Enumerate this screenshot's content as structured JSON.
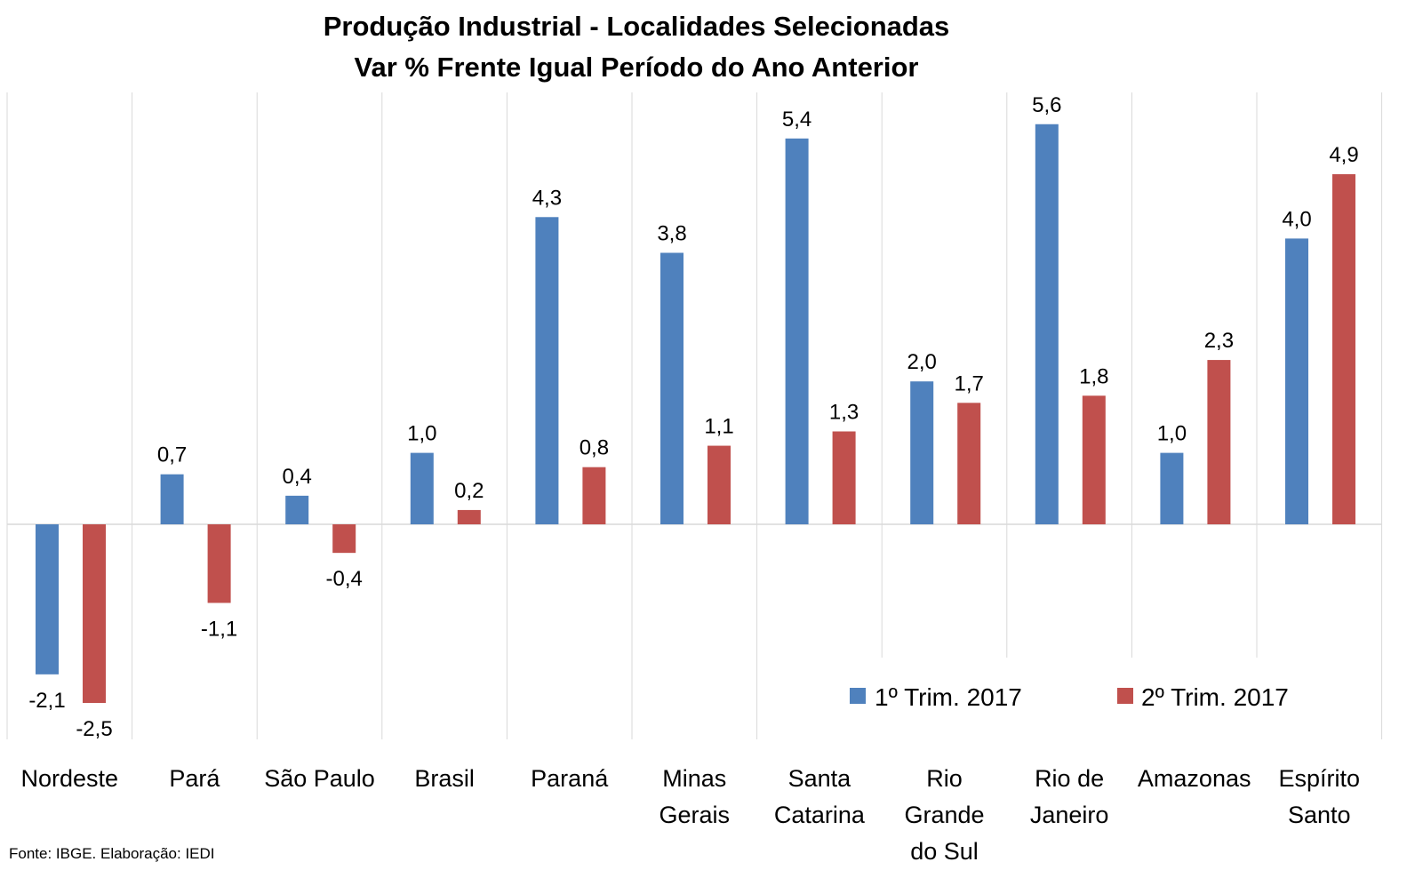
{
  "chart_data": {
    "type": "bar",
    "title": "Produção Industrial - Localidades Selecionadas",
    "subtitle": "Var % Frente Igual Período do Ano Anterior",
    "source": "Fonte: IBGE. Elaboração: IEDI",
    "categories": [
      [
        "Nordeste"
      ],
      [
        "Pará"
      ],
      [
        "São Paulo"
      ],
      [
        "Brasil"
      ],
      [
        "Paraná"
      ],
      [
        "Minas",
        "Gerais"
      ],
      [
        "Santa",
        "Catarina"
      ],
      [
        "Rio",
        "Grande",
        "do Sul"
      ],
      [
        "Rio de",
        "Janeiro"
      ],
      [
        "Amazonas"
      ],
      [
        "Espírito",
        "Santo"
      ]
    ],
    "series": [
      {
        "name": "1º Trim. 2017",
        "color": "#4f81bd",
        "values": [
          -2.1,
          0.7,
          0.4,
          1.0,
          4.3,
          3.8,
          5.4,
          2.0,
          5.6,
          1.0,
          4.0
        ],
        "labels": [
          "-2,1",
          "0,7",
          "0,4",
          "1,0",
          "4,3",
          "3,8",
          "5,4",
          "2,0",
          "5,6",
          "1,0",
          "4,0"
        ]
      },
      {
        "name": "2º Trim. 2017",
        "color": "#c0504d",
        "values": [
          -2.5,
          -1.1,
          -0.4,
          0.2,
          0.8,
          1.1,
          1.3,
          1.7,
          1.8,
          2.3,
          4.9
        ],
        "labels": [
          "-2,5",
          "-1,1",
          "-0,4",
          "0,2",
          "0,8",
          "1,1",
          "1,3",
          "1,7",
          "1,8",
          "2,3",
          "4,9"
        ]
      }
    ],
    "ylim": [
      -3.0,
      6.0
    ],
    "grid": "vertical separators between categories",
    "legend_position": "bottom-right"
  }
}
